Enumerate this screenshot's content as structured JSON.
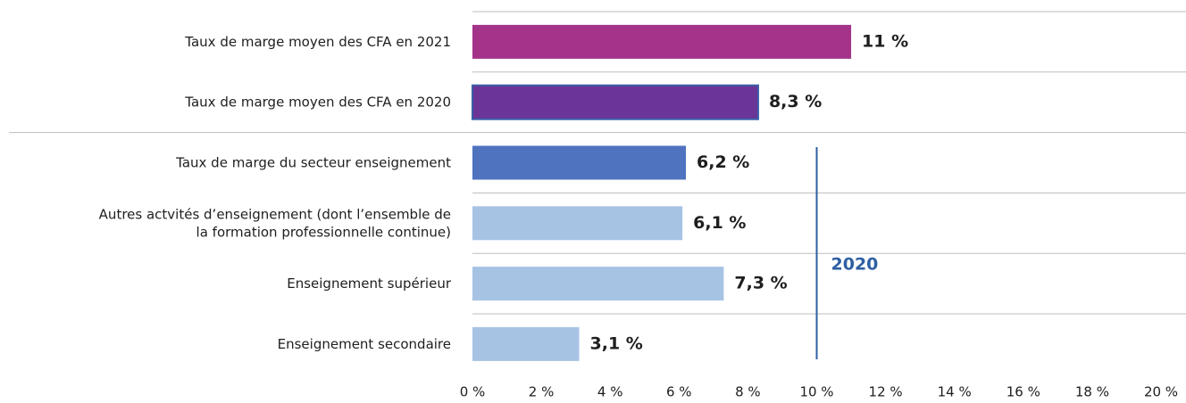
{
  "chart_data": {
    "type": "bar",
    "orientation": "horizontal",
    "categories": [
      "Taux de marge moyen des CFA en 2021",
      "Taux de marge moyen des CFA en 2020",
      "Taux de marge du secteur enseignement",
      "Autres actvités d’enseignement (dont l’ensemble de\nla formation professionnelle continue)",
      "Enseignement supérieur",
      "Enseignement secondaire"
    ],
    "values": [
      11,
      8.3,
      6.2,
      6.1,
      7.3,
      3.1
    ],
    "value_labels": [
      "11 %",
      "8,3 %",
      "6,2 %",
      "6,1 %",
      "7,3 %",
      "3,1 %"
    ],
    "colors": [
      "#a4338a",
      "#6a3596",
      "#5073c0",
      "#a7c3e4",
      "#a7c3e4",
      "#a7c3e4"
    ],
    "xlim": [
      0,
      20
    ],
    "xticks": [
      {
        "value": 0,
        "label": "0 %"
      },
      {
        "value": 2,
        "label": "2 %"
      },
      {
        "value": 4,
        "label": "4 %"
      },
      {
        "value": 6,
        "label": "6 %"
      },
      {
        "value": 8,
        "label": "8 %"
      },
      {
        "value": 10,
        "label": "10 %"
      },
      {
        "value": 12,
        "label": "12 %"
      },
      {
        "value": 14,
        "label": "14 %"
      },
      {
        "value": 16,
        "label": "16 %"
      },
      {
        "value": 18,
        "label": "18 %"
      },
      {
        "value": 20,
        "label": "20 %"
      }
    ],
    "reference_line": {
      "value": 10,
      "label": "2020",
      "color": "#2e5fa3"
    }
  }
}
